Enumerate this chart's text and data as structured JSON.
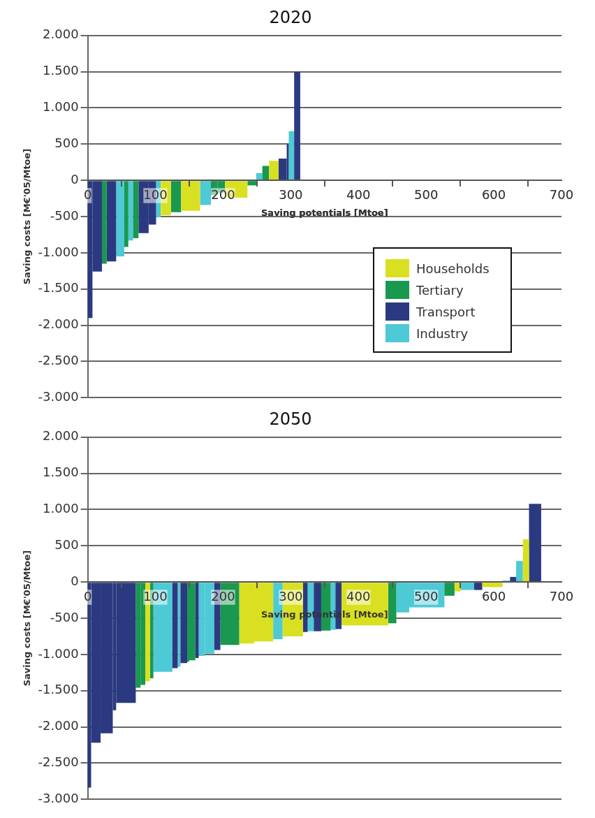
{
  "chart_data": [
    {
      "type": "histogram",
      "title": "2020",
      "xlabel": "Saving potentials [Mtoe]",
      "ylabel": "Saving costs [M€'05/Mtoe]",
      "xlim": [
        0,
        700
      ],
      "xticks": [
        0,
        100,
        200,
        300,
        400,
        500,
        600,
        700
      ],
      "ylim": [
        -3000,
        2000
      ],
      "yticks": [
        {
          "value": 2000,
          "label": "2.000"
        },
        {
          "value": 1500,
          "label": "1.500"
        },
        {
          "value": 1000,
          "label": "1.000"
        },
        {
          "value": 500,
          "label": "500"
        },
        {
          "value": 0,
          "label": "0"
        },
        {
          "value": -500,
          "label": "-500"
        },
        {
          "value": -1000,
          "label": "-1.000"
        },
        {
          "value": -1500,
          "label": "-1.500"
        },
        {
          "value": -2000,
          "label": "-2.000"
        },
        {
          "value": -2500,
          "label": "-2.500"
        },
        {
          "value": -3000,
          "label": "-3.000"
        }
      ],
      "grid": "y",
      "legend": "bottom right",
      "bins": [
        0,
        7,
        21,
        28,
        42,
        54,
        60,
        67,
        75,
        90,
        101,
        108,
        123,
        138,
        166,
        182,
        192,
        203,
        236,
        249,
        258,
        268,
        282,
        294,
        297,
        305,
        314
      ],
      "series": [
        {
          "name": "Households",
          "color": "#d9e021",
          "values": [
            null,
            null,
            null,
            null,
            null,
            null,
            null,
            null,
            null,
            null,
            null,
            -480,
            null,
            -420,
            null,
            null,
            null,
            -240,
            null,
            null,
            null,
            270,
            null,
            null,
            null,
            null
          ]
        },
        {
          "name": "Tertiary",
          "color": "#1a9850",
          "values": [
            null,
            null,
            -1150,
            null,
            null,
            -920,
            null,
            -800,
            null,
            null,
            null,
            null,
            -440,
            null,
            null,
            -200,
            -170,
            null,
            -70,
            null,
            200,
            null,
            null,
            null,
            null,
            null
          ]
        },
        {
          "name": "Transport",
          "color": "#2b3a80",
          "values": [
            -1900,
            -1260,
            null,
            -1120,
            null,
            null,
            null,
            null,
            -730,
            -610,
            null,
            null,
            null,
            null,
            null,
            null,
            null,
            null,
            null,
            null,
            null,
            null,
            300,
            500,
            null,
            1500
          ]
        },
        {
          "name": "Industry",
          "color": "#4ec9d6",
          "values": [
            null,
            null,
            null,
            null,
            -1050,
            null,
            -830,
            null,
            null,
            null,
            -510,
            null,
            null,
            null,
            -340,
            null,
            null,
            null,
            null,
            100,
            null,
            null,
            null,
            null,
            680,
            null
          ]
        }
      ]
    },
    {
      "type": "histogram",
      "title": "2050",
      "xlabel": "Saving potentials [Mtoe]",
      "ylabel": "Saving costs [M€'05/Mtoe]",
      "xlim": [
        0,
        700
      ],
      "xticks": [
        0,
        100,
        200,
        300,
        400,
        500,
        600,
        700
      ],
      "ylim": [
        -3000,
        2000
      ],
      "yticks": [
        {
          "value": 2000,
          "label": "2.000"
        },
        {
          "value": 1500,
          "label": "1.500"
        },
        {
          "value": 1000,
          "label": "1.000"
        },
        {
          "value": 500,
          "label": "500"
        },
        {
          "value": 0,
          "label": "0"
        },
        {
          "value": -500,
          "label": "-500"
        },
        {
          "value": -1000,
          "label": "-1.000"
        },
        {
          "value": -1500,
          "label": "-1.500"
        },
        {
          "value": -2000,
          "label": "-2.000"
        },
        {
          "value": -2500,
          "label": "-2.500"
        },
        {
          "value": -3000,
          "label": "-3.000"
        }
      ],
      "grid": "y",
      "bins": [
        0,
        5,
        19,
        37,
        42,
        71,
        78,
        85,
        92,
        97,
        125,
        133,
        137,
        147,
        150,
        159,
        164,
        173,
        187,
        196,
        224,
        246,
        274,
        288,
        318,
        325,
        334,
        345,
        359,
        366,
        375,
        444,
        456,
        475,
        527,
        542,
        551,
        571,
        583,
        613,
        624,
        633,
        643,
        652,
        670
      ],
      "series": [
        {
          "color": "#d9e021",
          "values": [
            null,
            null,
            null,
            null,
            null,
            null,
            null,
            -1370,
            null,
            null,
            null,
            null,
            null,
            null,
            null,
            null,
            null,
            null,
            null,
            null,
            -850,
            -820,
            null,
            -750,
            null,
            null,
            null,
            null,
            null,
            null,
            -600,
            null,
            null,
            null,
            null,
            -130,
            null,
            null,
            -70,
            null,
            null,
            null,
            590,
            null
          ]
        },
        {
          "color": "#2b3a80",
          "values": [
            -2840,
            -2220,
            -2090,
            -1770,
            -1670,
            null,
            null,
            null,
            null,
            null,
            -1190,
            null,
            -1120,
            null,
            null,
            -1050,
            null,
            null,
            -940,
            null,
            null,
            null,
            null,
            null,
            -690,
            null,
            -680,
            null,
            null,
            -650,
            null,
            null,
            null,
            null,
            null,
            null,
            null,
            -110,
            null,
            null,
            70,
            null,
            null,
            1080
          ]
        },
        {
          "color": "#1a9850",
          "values": [
            null,
            null,
            null,
            null,
            null,
            -1460,
            -1420,
            null,
            -1330,
            null,
            null,
            null,
            null,
            -1100,
            -1080,
            null,
            null,
            null,
            null,
            -870,
            null,
            null,
            null,
            null,
            null,
            null,
            null,
            -670,
            null,
            null,
            null,
            -570,
            null,
            null,
            -190,
            null,
            null,
            null,
            null,
            null,
            null,
            null,
            null,
            null
          ]
        },
        {
          "color": "#4ec9d6",
          "values": [
            null,
            null,
            null,
            null,
            null,
            null,
            null,
            null,
            null,
            -1240,
            null,
            -1170,
            null,
            null,
            null,
            null,
            -1020,
            -990,
            null,
            null,
            null,
            null,
            -790,
            null,
            null,
            -680,
            null,
            null,
            -660,
            null,
            null,
            null,
            -420,
            -350,
            null,
            null,
            -110,
            null,
            null,
            20,
            null,
            290,
            null,
            null
          ]
        }
      ]
    }
  ]
}
